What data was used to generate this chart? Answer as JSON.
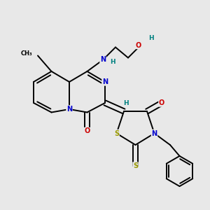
{
  "colors": {
    "C": "#000000",
    "N": "#0000cc",
    "O": "#cc0000",
    "S": "#999900",
    "H": "#008080",
    "bond": "#000000",
    "background": "#e8e8e8"
  },
  "lw": 1.4,
  "fs": 7.0
}
